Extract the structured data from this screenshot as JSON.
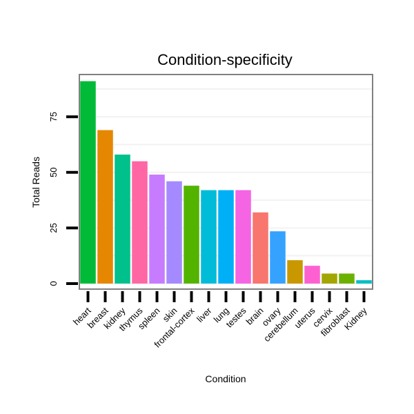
{
  "chart_data": {
    "type": "bar",
    "title": "Condition-specificity",
    "xlabel": "Condition",
    "ylabel": "Total Reads",
    "ylim": [
      -2.5,
      94
    ],
    "yticks": [
      0,
      25,
      50,
      75
    ],
    "grid": true,
    "categories": [
      "heart",
      "breast",
      "kidney",
      "thymus",
      "spleen",
      "skin",
      "frontal-cortex",
      "liver",
      "lung",
      "testes",
      "brain",
      "ovary",
      "cerebellum",
      "uterus",
      "cervix",
      "fibroblast",
      "Kidney"
    ],
    "values": [
      91,
      69,
      58,
      55,
      49,
      46,
      44,
      42,
      42,
      42,
      32,
      23.5,
      10.5,
      8,
      4.5,
      4.5,
      1.5
    ],
    "colors": [
      "#00BA38",
      "#E58700",
      "#00C08B",
      "#FF67A4",
      "#C77CFF",
      "#A58AFF",
      "#53B400",
      "#00BCD8",
      "#00B0F6",
      "#F564E3",
      "#F8766D",
      "#35A2FF",
      "#C99800",
      "#FD61D1",
      "#A3A500",
      "#6BB100",
      "#00BFC4"
    ]
  }
}
